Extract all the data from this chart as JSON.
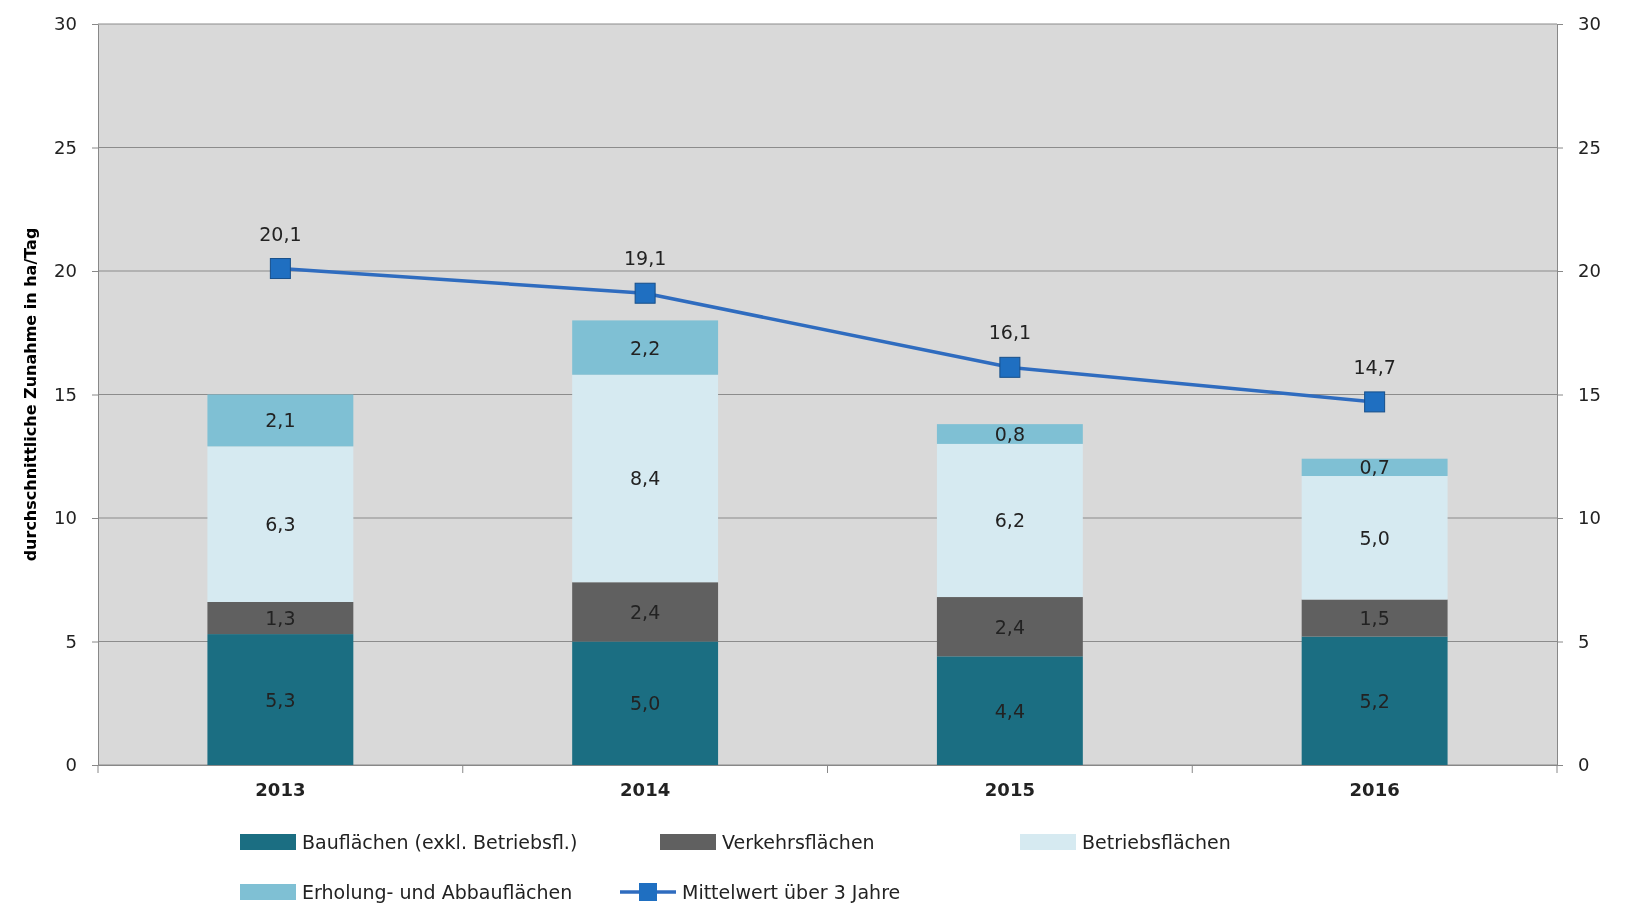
{
  "chart_data": {
    "type": "bar",
    "stacked": true,
    "ylabel": "durchschnittliche Zunahme in ha/Tag",
    "categories": [
      "2013",
      "2014",
      "2015",
      "2016"
    ],
    "series": [
      {
        "name": "Bauflächen (exkl. Betriebsfl.)",
        "color": "#1b6e82",
        "values": [
          5.3,
          5.0,
          4.4,
          5.2
        ],
        "value_labels": [
          "5,3",
          "5,0",
          "4,4",
          "5,2"
        ]
      },
      {
        "name": "Verkehrsflächen",
        "color": "#606060",
        "values": [
          1.3,
          2.4,
          2.4,
          1.5
        ],
        "value_labels": [
          "1,3",
          "2,4",
          "2,4",
          "1,5"
        ]
      },
      {
        "name": "Betriebsflächen",
        "color": "#d6eaf1",
        "values": [
          6.3,
          8.4,
          6.2,
          5.0
        ],
        "value_labels": [
          "6,3",
          "8,4",
          "6,2",
          "5,0"
        ]
      },
      {
        "name": "Erholung- und Abbauflächen",
        "color": "#7fc0d4",
        "values": [
          2.1,
          2.2,
          0.8,
          0.7
        ],
        "value_labels": [
          "2,1",
          "2,2",
          "0,8",
          "0,7"
        ]
      },
      {
        "name": "Mittelwert über 3 Jahre",
        "type": "line",
        "color": "#2f6cbf",
        "marker": "square",
        "values": [
          20.1,
          19.1,
          16.1,
          14.7
        ],
        "value_labels": [
          "20,1",
          "19,1",
          "16,1",
          "14,7"
        ]
      }
    ],
    "ylim": [
      0,
      30
    ],
    "yticks": [
      0,
      5,
      10,
      15,
      20,
      25,
      30
    ],
    "y2lim": [
      0,
      30
    ],
    "y2ticks": [
      0,
      5,
      10,
      15,
      20,
      25,
      30
    ],
    "grid": "y",
    "legend": "bottom"
  }
}
